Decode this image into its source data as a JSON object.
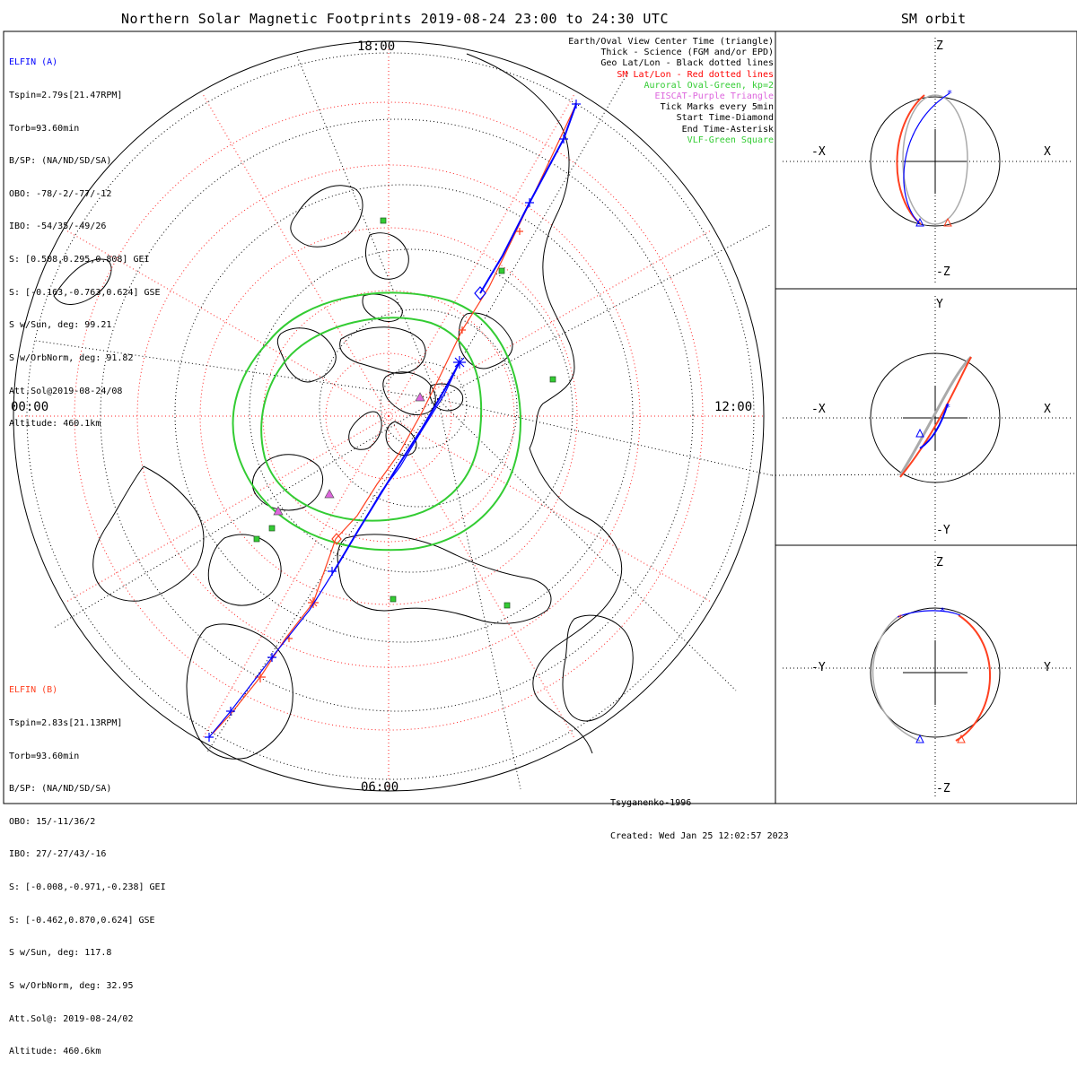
{
  "title": "Northern Solar Magnetic Footprints 2019-08-24 23:00 to 24:30 UTC",
  "side_title": "SM orbit",
  "clock_labels": {
    "top": "18:00",
    "left": "00:00",
    "right": "12:00",
    "bottom": "06:00"
  },
  "elfin_a": {
    "name": "ELFIN (A)",
    "color": "#0000ff",
    "lines": [
      "Tspin=2.79s[21.47RPM]",
      "Torb=93.60min",
      "B/SP: (NA/ND/SD/SA)",
      "OBO: -78/-2/-77/-12",
      "IBO: -54/35/-49/26",
      "S: [0.508,0.295,0.808] GEI",
      "S: [-0.163,-0.763,0.624] GSE",
      "S w/Sun, deg: 99.21",
      "S w/OrbNorm, deg: 91.82",
      "Att.Sol@2019-08-24/08",
      "Altitude: 460.1km"
    ]
  },
  "elfin_b": {
    "name": "ELFIN (B)",
    "color": "#ff4020",
    "lines": [
      "Tspin=2.83s[21.13RPM]",
      "Torb=93.60min",
      "B/SP: (NA/ND/SD/SA)",
      "OBO: 15/-11/36/2",
      "IBO: 27/-27/43/-16",
      "S: [-0.008,-0.971,-0.238] GEI",
      "S: [-0.462,0.870,0.624] GSE",
      "S w/Sun, deg: 117.8",
      "S w/OrbNorm, deg: 32.95",
      "Att.Sol@: 2019-08-24/02",
      "Altitude: 460.6km"
    ]
  },
  "legend": [
    {
      "text": "Earth/Oval View Center Time (triangle)",
      "color": "#000000"
    },
    {
      "text": "Thick - Science (FGM and/or EPD)",
      "color": "#000000"
    },
    {
      "text": "Geo Lat/Lon - Black dotted lines",
      "color": "#000000"
    },
    {
      "text": "SM Lat/Lon - Red dotted lines",
      "color": "#ff0000"
    },
    {
      "text": "Auroral Oval-Green, kp=2",
      "color": "#33cc33"
    },
    {
      "text": "EISCAT-Purple Triangle",
      "color": "#dd66dd"
    },
    {
      "text": "Tick Marks every 5min",
      "color": "#000000"
    },
    {
      "text": "Start Time-Diamond",
      "color": "#000000"
    },
    {
      "text": "End Time-Asterisk",
      "color": "#000000"
    },
    {
      "text": "VLF-Green Square",
      "color": "#33cc33"
    }
  ],
  "footer": {
    "credit": "Tsyganenko-1996",
    "created": "Created: Wed Jan 25 12:02:57 2023"
  },
  "orbit_panels": [
    {
      "top": "Z",
      "bottom": "-Z",
      "left": "-X",
      "right": "X"
    },
    {
      "top": "Y",
      "bottom": "-Y",
      "left": "-X",
      "right": "X"
    },
    {
      "top": "Z",
      "bottom": "-Z",
      "left": "-Y",
      "right": "Y"
    }
  ]
}
